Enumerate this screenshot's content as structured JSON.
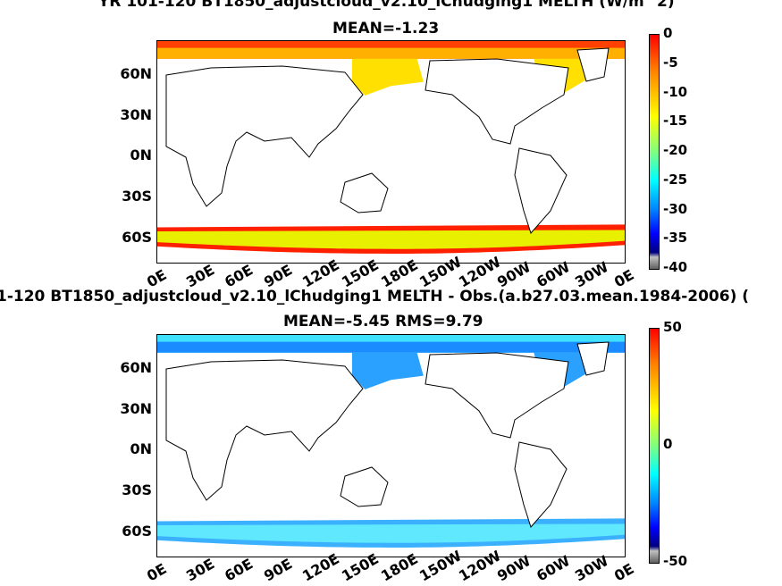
{
  "panels": [
    {
      "title_line1": "YR 101-120 BT1850_adjustcloud_v2.10_lChudging1  MELTH (W/m^2)",
      "title_line2": "MEAN=-1.23"
    },
    {
      "title_line1": "1-120 BT1850_adjustcloud_v2.10_lChudging1 MELTH - Obs.(a.b27.03.mean.1984-2006) (",
      "title_line2": "MEAN=-5.45 RMS=9.79"
    }
  ],
  "chart_data": [
    {
      "type": "heatmap",
      "title": "YR 101-120 BT1850_adjustcloud_v2.10_lChudging1  MELTH (W/m^2)",
      "subtitle": "MEAN=-1.23",
      "y_ticks": [
        "60N",
        "30N",
        "0N",
        "30S",
        "60S"
      ],
      "x_ticks": [
        "0E",
        "30E",
        "60E",
        "90E",
        "120E",
        "150E",
        "180E",
        "150W",
        "120W",
        "90W",
        "60W",
        "30W",
        "0E"
      ],
      "colorbar": {
        "ticks": [
          "0",
          "-5",
          "-10",
          "-15",
          "-20",
          "-25",
          "-30",
          "-35",
          "-40"
        ],
        "range": [
          -40,
          0
        ]
      }
    },
    {
      "type": "heatmap",
      "title": "1-120 BT1850_adjustcloud_v2.10_lChudging1 MELTH - Obs.(a.b27.03.mean.1984-2006) (",
      "subtitle": "MEAN=-5.45 RMS=9.79",
      "y_ticks": [
        "60N",
        "30N",
        "0N",
        "30S",
        "60S"
      ],
      "x_ticks": [
        "0E",
        "30E",
        "60E",
        "90E",
        "120E",
        "150E",
        "180E",
        "150W",
        "120W",
        "90W",
        "60W",
        "30W",
        "0E"
      ],
      "colorbar": {
        "ticks": [
          "50",
          "0",
          "-50"
        ],
        "range": [
          -50,
          50
        ]
      }
    }
  ]
}
